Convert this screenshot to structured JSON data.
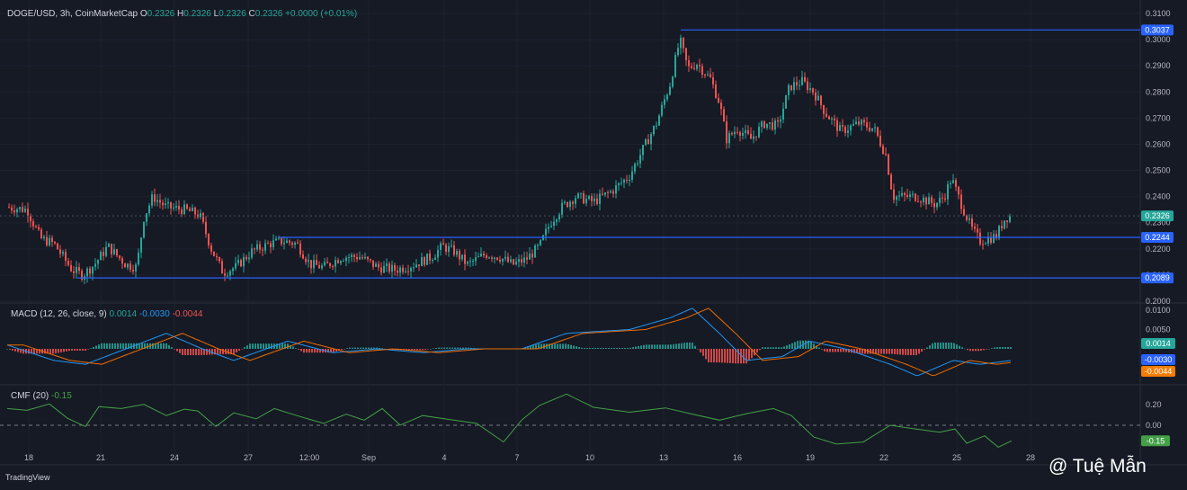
{
  "header": {
    "symbol": "DOGE/USD, 3h, CoinMarketCap",
    "o_label": "O",
    "o_val": "0.2326",
    "h_label": "H",
    "h_val": "0.2326",
    "l_label": "L",
    "l_val": "0.2326",
    "c_label": "C",
    "c_val": "0.2326",
    "change": "+0.0000 (+0.01%)"
  },
  "price_axis": {
    "ticks": [
      "0.3100",
      "0.3000",
      "0.2900",
      "0.2800",
      "0.2700",
      "0.2600",
      "0.2500",
      "0.2400",
      "0.2300",
      "0.2200",
      "0.2100",
      "0.2000"
    ],
    "tick_values": [
      0.31,
      0.3,
      0.29,
      0.28,
      0.27,
      0.26,
      0.25,
      0.24,
      0.23,
      0.22,
      0.21,
      0.2
    ]
  },
  "levels": [
    {
      "label": "0.3037",
      "value": 0.3037,
      "color": "#2962ff"
    },
    {
      "label": "0.2244",
      "value": 0.2244,
      "color": "#2962ff"
    },
    {
      "label": "0.2089",
      "value": 0.2089,
      "color": "#2962ff"
    }
  ],
  "last_price": {
    "label": "0.2326",
    "value": 0.2326,
    "color": "#26a69a"
  },
  "macd": {
    "title": "MACD (12, 26, close, 9)",
    "hist": "0.0014",
    "macd": "-0.0030",
    "signal": "-0.0044",
    "axis": [
      "0.0100",
      "0.0050"
    ],
    "axis_values": [
      0.01,
      0.005
    ],
    "tags": [
      {
        "label": "0.0014",
        "value": 0.0014,
        "color": "#26a69a"
      },
      {
        "label": "-0.0030",
        "value": -0.003,
        "color": "#2962ff"
      },
      {
        "label": "-0.0044",
        "value": -0.0044,
        "color": "#f57c00"
      }
    ]
  },
  "cmf": {
    "title": "CMF (20)",
    "value": "-0.15",
    "axis": [
      "0.20",
      "0.00"
    ],
    "axis_values": [
      0.2,
      0.0
    ],
    "tag": {
      "label": "-0.15",
      "value": -0.15,
      "color": "#43a047"
    }
  },
  "time_axis": [
    "18",
    "21",
    "24",
    "27",
    "12:00",
    "Sep",
    "4",
    "7",
    "10",
    "13",
    "16",
    "19",
    "22",
    "25",
    "28"
  ],
  "watermark": "@ Tuệ Mẫn",
  "brand": "TradingView",
  "colors": {
    "up": "#26a69a",
    "down": "#ef5350",
    "level": "#2962ff",
    "macd": "#2196f3",
    "signal": "#ef6c00",
    "cmf": "#43a047"
  },
  "chart_data": {
    "type": "candlestick",
    "title": "DOGE/USD, 3h, CoinMarketCap",
    "ylim": [
      0.2,
      0.31
    ],
    "series": [
      {
        "name": "DOGE/USD close (approx)",
        "x": [
          "18",
          "21",
          "24",
          "27",
          "12:00",
          "Sep",
          "4",
          "7",
          "10",
          "13",
          "16",
          "19",
          "22",
          "25",
          "27"
        ],
        "values": [
          0.233,
          0.212,
          0.238,
          0.212,
          0.221,
          0.218,
          0.214,
          0.218,
          0.24,
          0.297,
          0.262,
          0.283,
          0.262,
          0.24,
          0.2326
        ]
      }
    ],
    "macd": {
      "values": [
        0.0,
        -0.004,
        0.004,
        -0.002,
        0.002,
        0.0,
        0.0,
        0.0,
        0.003,
        0.01,
        -0.004,
        0.001,
        0.0,
        -0.006,
        -0.003
      ]
    },
    "cmf": {
      "values": [
        0.2,
        0.05,
        0.2,
        0.1,
        0.1,
        0.2,
        0.05,
        0.1,
        0.25,
        0.1,
        0.2,
        -0.05,
        -0.2,
        0.0,
        -0.15
      ]
    }
  }
}
